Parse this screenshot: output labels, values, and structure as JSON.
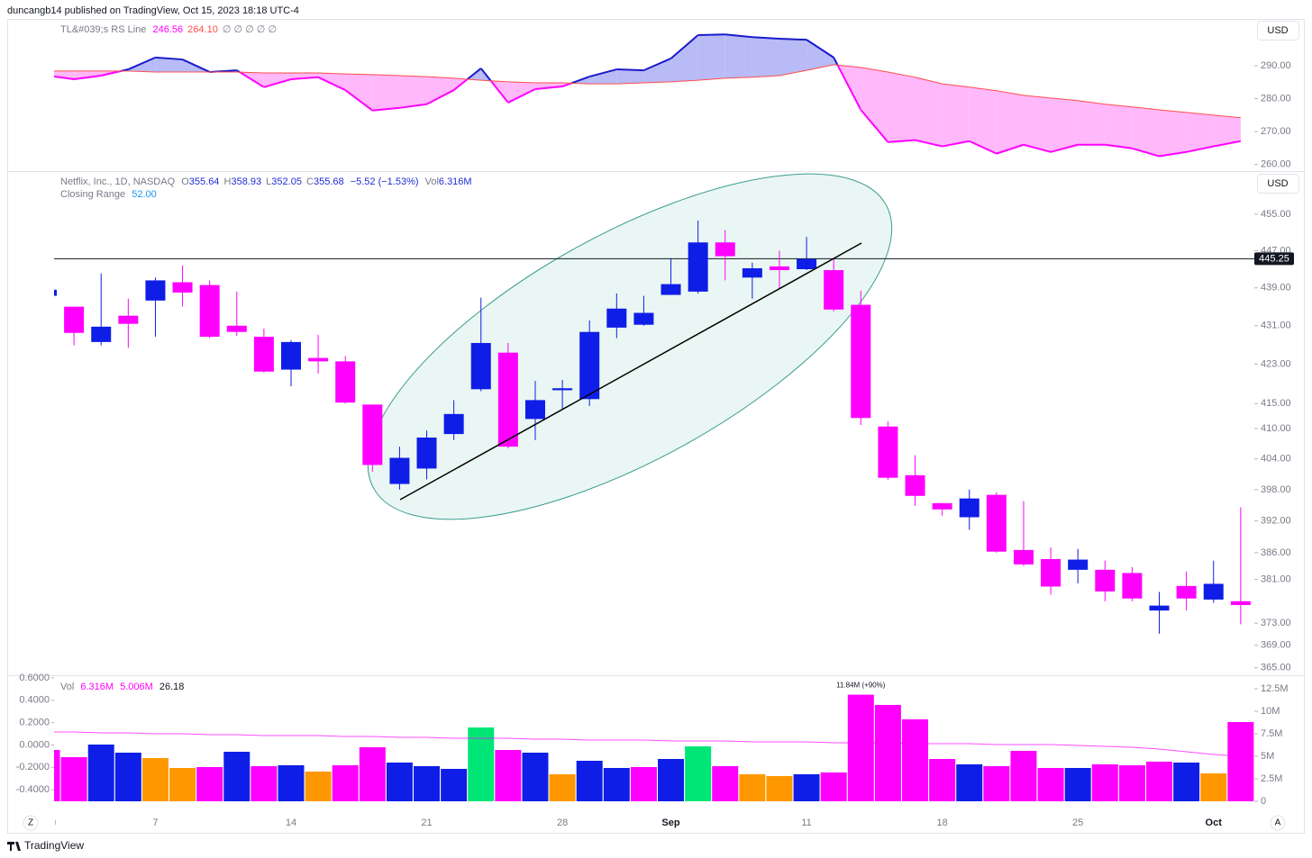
{
  "header": {
    "published": "duncangb14 published on TradingView, Oct 15, 2023 18:18 UTC-4"
  },
  "footer": {
    "brand": "TradingView",
    "left_button": "Z",
    "right_button": "A"
  },
  "chart_data": [
    {
      "type": "rs-line",
      "currency": "USD",
      "status": {
        "name": "TL&#039;s RS Line",
        "value_1": "246.56",
        "value_2": "264.10",
        "empty": "∅ ∅ ∅ ∅ ∅"
      },
      "fill_above": "#b8bbf5",
      "fill_below": "#ffb8fa",
      "series": [
        {
          "color": "#1a1acc",
          "color_below": "#ff00ff",
          "values": [
            287.0,
            285.9,
            287.0,
            288.9,
            292.5,
            291.9,
            288.1,
            288.6,
            283.5,
            285.9,
            286.5,
            282.6,
            276.4,
            277.2,
            278.3,
            282.6,
            289.2,
            278.8,
            282.9,
            283.7,
            286.7,
            288.9,
            288.6,
            292.2,
            299.3,
            299.5,
            298.7,
            298.2,
            297.9,
            292.5,
            276.6,
            266.8,
            267.4,
            265.5,
            267.1,
            263.3,
            266.0,
            263.8,
            266.0,
            266.0,
            264.9,
            262.5,
            263.8,
            265.5,
            267.1
          ]
        },
        {
          "color": "#ff4d4d",
          "values": [
            288.4,
            288.4,
            288.4,
            288.4,
            288.1,
            288.1,
            288.1,
            288.1,
            287.8,
            287.8,
            287.8,
            287.5,
            287.3,
            287.0,
            286.7,
            286.2,
            285.6,
            285.1,
            284.8,
            284.8,
            284.5,
            284.5,
            284.8,
            285.1,
            285.6,
            286.2,
            286.5,
            287.0,
            288.6,
            290.3,
            289.5,
            288.1,
            286.5,
            284.5,
            283.5,
            282.4,
            281.0,
            280.2,
            279.4,
            278.3,
            277.5,
            276.6,
            275.8,
            275.0,
            274.2
          ]
        }
      ],
      "ylim": [
        258,
        304.5
      ],
      "yticks": [
        {
          "value": 290,
          "label": "290.00"
        },
        {
          "value": 280,
          "label": "280.00"
        },
        {
          "value": 270,
          "label": "270.00"
        },
        {
          "value": 260,
          "label": "260.00"
        }
      ]
    },
    {
      "type": "candlestick",
      "currency": "USD",
      "log_scale": true,
      "status": {
        "name": "Netflix, Inc., 1D, NASDAQ",
        "fields": [
          {
            "label": "O",
            "value": "355.64"
          },
          {
            "label": "H",
            "value": "358.93"
          },
          {
            "label": "L",
            "value": "352.05"
          },
          {
            "label": "C",
            "value": "355.68"
          }
        ],
        "change": "−5.52 (−1.53%)",
        "volume_label": "Vol",
        "volume": "6.316M",
        "indicator": "Closing Range",
        "indicator_value": "52.00"
      },
      "up_color": "#0f1ee6",
      "down_color": "#ff00ff",
      "categories": [
        null,
        null,
        null,
        null,
        "7",
        null,
        null,
        null,
        null,
        "14",
        null,
        null,
        null,
        null,
        "21",
        null,
        null,
        null,
        null,
        "28",
        null,
        null,
        null,
        "Sep",
        null,
        null,
        null,
        null,
        "11",
        null,
        null,
        null,
        null,
        "18",
        null,
        null,
        null,
        null,
        "25",
        null,
        null,
        null,
        null,
        "Oct",
        null
      ],
      "open": [
        437.3,
        435.0,
        427.6,
        433.1,
        436.3,
        440.2,
        439.6,
        431.0,
        428.7,
        421.9,
        424.3,
        423.6,
        414.8,
        399.1,
        402.1,
        408.9,
        417.9,
        425.4,
        411.9,
        417.7,
        415.9,
        430.6,
        431.2,
        437.5,
        438.2,
        448.8,
        441.2,
        443.6,
        443.0,
        442.8,
        435.4,
        410.4,
        400.8,
        395.4,
        392.7,
        397.0,
        386.5,
        384.8,
        382.8,
        382.8,
        382.2,
        375.3,
        379.8,
        377.3,
        377.0
      ],
      "high": [
        438.6,
        435.0,
        442.1,
        436.7,
        441.2,
        443.8,
        440.6,
        438.2,
        430.4,
        428.0,
        429.1,
        424.7,
        414.8,
        406.4,
        409.6,
        415.7,
        436.9,
        427.4,
        419.6,
        419.8,
        432.1,
        437.8,
        437.3,
        445.4,
        453.6,
        451.5,
        444.4,
        447.0,
        450.0,
        445.2,
        438.4,
        411.4,
        404.7,
        395.4,
        398.0,
        397.5,
        395.8,
        387.0,
        386.7,
        384.5,
        383.3,
        378.7,
        382.5,
        384.5,
        394.6
      ],
      "low": [
        437.3,
        426.9,
        426.9,
        426.4,
        428.7,
        435.0,
        428.4,
        428.9,
        421.3,
        418.5,
        421.1,
        415.0,
        401.5,
        398.0,
        400.0,
        407.7,
        417.5,
        406.1,
        407.7,
        413.8,
        414.5,
        428.4,
        431.0,
        437.5,
        437.8,
        440.6,
        436.7,
        438.8,
        442.8,
        434.0,
        410.7,
        399.9,
        394.9,
        393.0,
        390.3,
        386.0,
        383.5,
        378.2,
        380.3,
        377.0,
        377.0,
        371.1,
        375.3,
        376.7,
        372.8
      ],
      "close": [
        438.6,
        429.5,
        430.8,
        431.4,
        440.6,
        438.0,
        428.7,
        429.7,
        421.5,
        427.6,
        423.6,
        415.2,
        402.8,
        404.2,
        408.2,
        412.9,
        427.4,
        406.4,
        415.7,
        418.1,
        429.7,
        434.6,
        433.7,
        439.8,
        448.8,
        445.8,
        443.2,
        442.8,
        445.2,
        434.4,
        412.1,
        400.3,
        396.8,
        394.2,
        396.3,
        386.2,
        383.8,
        379.7,
        384.7,
        378.8,
        377.5,
        376.2,
        377.5,
        380.2,
        376.3
      ],
      "hline": 445.25,
      "ylim": [
        364,
        462
      ],
      "yticks": [
        {
          "value": 455,
          "label": "455.00"
        },
        {
          "value": 447,
          "label": "447.00"
        },
        {
          "value": 439,
          "label": "439.00"
        },
        {
          "value": 431,
          "label": "431.00"
        },
        {
          "value": 423,
          "label": "423.00"
        },
        {
          "value": 415,
          "label": "415.00"
        },
        {
          "value": 410,
          "label": "410.00"
        },
        {
          "value": 404,
          "label": "404.00"
        },
        {
          "value": 398,
          "label": "398.00"
        },
        {
          "value": 392,
          "label": "392.00"
        },
        {
          "value": 386,
          "label": "386.00"
        },
        {
          "value": 381,
          "label": "381.00"
        },
        {
          "value": 373,
          "label": "373.00"
        },
        {
          "value": 369,
          "label": "369.00"
        },
        {
          "value": 365,
          "label": "365.00"
        }
      ]
    },
    {
      "type": "volume",
      "status": {
        "name": "Vol",
        "value_1": "6.316M",
        "value_2": "5.006M",
        "value_3": "26.18"
      },
      "values": [
        5.7,
        4.9,
        6.3,
        5.4,
        4.8,
        3.7,
        3.8,
        5.5,
        3.9,
        4.0,
        3.3,
        4.0,
        6.0,
        4.3,
        3.9,
        3.6,
        8.2,
        5.7,
        5.4,
        3.0,
        4.5,
        3.7,
        3.8,
        4.7,
        6.1,
        3.9,
        3.0,
        2.8,
        3.0,
        3.2,
        11.84,
        10.7,
        9.1,
        4.7,
        4.1,
        3.9,
        5.6,
        3.7,
        3.7,
        4.1,
        4.0,
        4.4,
        4.3,
        3.1,
        8.8
      ],
      "value_labels": [
        null,
        null,
        null,
        null,
        null,
        null,
        null,
        null,
        null,
        null,
        null,
        null,
        null,
        null,
        null,
        null,
        null,
        null,
        null,
        null,
        null,
        null,
        null,
        null,
        null,
        null,
        null,
        null,
        null,
        null,
        "11.84M (+90%)",
        null,
        null,
        null,
        null,
        null,
        null,
        null,
        null,
        null,
        null,
        null,
        null,
        null,
        null
      ],
      "colors": [
        "#ff00ff",
        "#ff00ff",
        "#0f1ee6",
        "#0f1ee6",
        "#ff9800",
        "#ff9800",
        "#ff00ff",
        "#0f1ee6",
        "#ff00ff",
        "#0f1ee6",
        "#ff9800",
        "#ff00ff",
        "#ff00ff",
        "#0f1ee6",
        "#0f1ee6",
        "#0f1ee6",
        "#00e676",
        "#ff00ff",
        "#0f1ee6",
        "#ff9800",
        "#0f1ee6",
        "#0f1ee6",
        "#ff00ff",
        "#0f1ee6",
        "#00e676",
        "#ff00ff",
        "#ff9800",
        "#ff9800",
        "#0f1ee6",
        "#ff00ff",
        "#ff00ff",
        "#ff00ff",
        "#ff00ff",
        "#ff00ff",
        "#0f1ee6",
        "#ff00ff",
        "#ff00ff",
        "#ff00ff",
        "#0f1ee6",
        "#ff00ff",
        "#ff00ff",
        "#ff00ff",
        "#0f1ee6",
        "#ff9800",
        "#ff00ff"
      ],
      "ma": [
        7.7,
        7.7,
        7.6,
        7.6,
        7.5,
        7.5,
        7.4,
        7.4,
        7.3,
        7.3,
        7.3,
        7.2,
        7.2,
        7.1,
        7.1,
        7.0,
        7.0,
        7.0,
        6.9,
        6.9,
        6.8,
        6.8,
        6.8,
        6.7,
        6.7,
        6.7,
        6.6,
        6.6,
        6.6,
        6.5,
        6.5,
        6.5,
        6.4,
        6.4,
        6.4,
        6.3,
        6.3,
        6.3,
        6.2,
        6.1,
        6.0,
        5.8,
        5.5,
        5.2,
        5.0
      ],
      "ma_color": "#ff00ff",
      "ylim": [
        0,
        14
      ],
      "yticks": [
        0,
        {
          "value": 2.5,
          "label": "2.5M"
        },
        {
          "value": 5,
          "label": "5M"
        },
        {
          "value": 7.5,
          "label": "7.5M"
        },
        {
          "value": 10,
          "label": "10M"
        },
        {
          "value": 12.5,
          "label": "12.5M"
        }
      ],
      "y2lim": [
        -0.504,
        0.624
      ],
      "y2ticks": [
        {
          "value": 0.6,
          "label": "0.6000"
        },
        {
          "value": 0.4,
          "label": "0.4000"
        },
        {
          "value": 0.2,
          "label": "0.2000"
        },
        {
          "value": 0,
          "label": "0.0000"
        },
        {
          "value": -0.2,
          "label": "-0.2000"
        },
        {
          "value": -0.4,
          "label": "-0.4000"
        }
      ]
    }
  ]
}
